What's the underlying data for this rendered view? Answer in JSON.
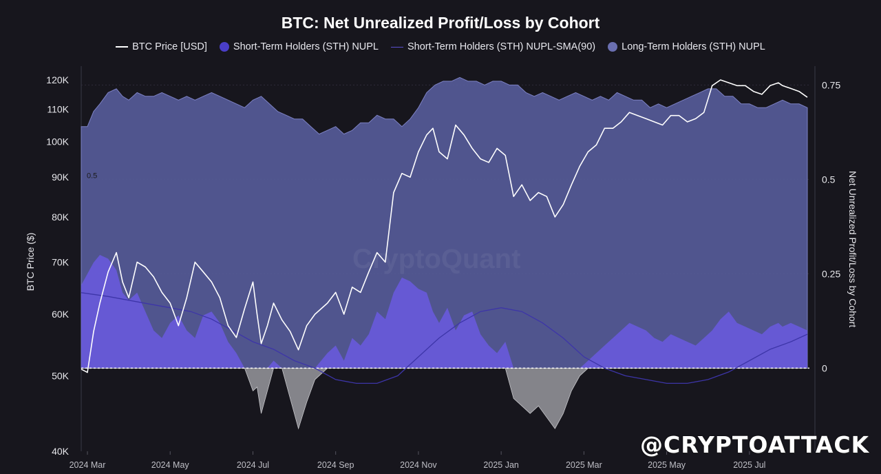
{
  "title": "BTC: Net Unrealized Profit/Loss by Cohort",
  "legend": [
    {
      "label": "BTC Price [USD]",
      "marker": "line",
      "color": "#ffffff"
    },
    {
      "label": "Short-Term Holders (STH) NUPL",
      "marker": "dot",
      "color": "#4a3ec8"
    },
    {
      "label": "Short-Term Holders (STH) NUPL-SMA(90)",
      "marker": "thin-line",
      "color": "#3d35a8"
    },
    {
      "label": "Long-Term Holders (STH) NUPL",
      "marker": "dot",
      "color": "#6a6fb0"
    }
  ],
  "watermark": "@CRYPTOATTACK",
  "logo": "CryptoQuant",
  "chart_data": {
    "type": "line",
    "title": "BTC: Net Unrealized Profit/Loss by Cohort",
    "xlabel": "",
    "ylabel_left": "BTC Price ($)",
    "ylabel_right": "Net Unrealized Profit/Loss by Cohort",
    "ylim_left": [
      40000,
      125000
    ],
    "yscale_left": "log",
    "ylim_right": [
      -0.22,
      0.8
    ],
    "left_ticks": [
      "40K",
      "50K",
      "60K",
      "70K",
      "80K",
      "90K",
      "100K",
      "110K",
      "120K"
    ],
    "left_tick_values": [
      40000,
      50000,
      60000,
      70000,
      80000,
      90000,
      100000,
      110000,
      120000
    ],
    "right_ticks": [
      "0",
      "0.25",
      "0.5",
      "0.75"
    ],
    "right_tick_values": [
      0,
      0.25,
      0.5,
      0.75
    ],
    "inline_annotation": "0.5",
    "x_ticks": [
      "2024 Mar",
      "2024 May",
      "2024 Jul",
      "2024 Sep",
      "2024 Nov",
      "2025 Jan",
      "2025 Mar",
      "2025 May",
      "2025 Jul"
    ],
    "x_tick_months": [
      1,
      3,
      5,
      7,
      9,
      11,
      13,
      15,
      17
    ],
    "x_range_months": [
      0.85,
      18.45
    ],
    "grid": true,
    "legend_position": "top",
    "series": [
      {
        "name": "BTC Price [USD]",
        "axis": "left",
        "color": "#ffffff",
        "x": [
          0.85,
          1.0,
          1.15,
          1.3,
          1.5,
          1.7,
          1.85,
          2.0,
          2.2,
          2.4,
          2.6,
          2.8,
          3.0,
          3.2,
          3.4,
          3.6,
          3.8,
          4.0,
          4.2,
          4.4,
          4.6,
          4.8,
          5.0,
          5.1,
          5.2,
          5.35,
          5.5,
          5.7,
          5.9,
          6.1,
          6.3,
          6.5,
          6.8,
          7.0,
          7.2,
          7.4,
          7.6,
          7.8,
          8.0,
          8.2,
          8.4,
          8.6,
          8.8,
          9.0,
          9.2,
          9.35,
          9.5,
          9.7,
          9.9,
          10.1,
          10.3,
          10.5,
          10.7,
          10.9,
          11.1,
          11.3,
          11.5,
          11.7,
          11.9,
          12.1,
          12.3,
          12.5,
          12.7,
          12.9,
          13.1,
          13.3,
          13.5,
          13.7,
          13.9,
          14.1,
          14.3,
          14.5,
          14.7,
          14.9,
          15.1,
          15.3,
          15.5,
          15.7,
          15.9,
          16.1,
          16.3,
          16.5,
          16.7,
          16.9,
          17.1,
          17.3,
          17.5,
          17.7,
          17.8,
          18.0,
          18.2,
          18.4
        ],
        "values": [
          51000,
          50500,
          57000,
          62000,
          68000,
          72000,
          66000,
          63000,
          70000,
          69000,
          67000,
          64000,
          62000,
          58000,
          63000,
          70000,
          68000,
          66000,
          63000,
          58000,
          56000,
          61000,
          66000,
          60000,
          55000,
          58000,
          62000,
          59000,
          57000,
          54000,
          58000,
          60000,
          62000,
          64000,
          60000,
          65000,
          64000,
          68000,
          72000,
          70000,
          86000,
          91000,
          90000,
          97000,
          102000,
          104000,
          97000,
          95000,
          105000,
          102000,
          98000,
          95000,
          94000,
          98000,
          96000,
          85000,
          88000,
          84000,
          86000,
          85000,
          80000,
          83000,
          88000,
          93000,
          97000,
          99000,
          104000,
          104000,
          106000,
          109000,
          108000,
          107000,
          106000,
          105000,
          108000,
          108000,
          106000,
          107000,
          109000,
          118000,
          120000,
          119000,
          118000,
          118000,
          116000,
          115000,
          118000,
          119000,
          118000,
          117000,
          116000,
          114000
        ],
        "note": "approximate values read off the chart"
      },
      {
        "name": "Short-Term Holders (STH) NUPL",
        "axis": "right",
        "color": "#4a3ec8",
        "x": [
          0.85,
          1.0,
          1.15,
          1.3,
          1.5,
          1.7,
          1.85,
          2.0,
          2.2,
          2.4,
          2.6,
          2.8,
          3.0,
          3.2,
          3.4,
          3.6,
          3.8,
          4.0,
          4.2,
          4.4,
          4.6,
          4.8,
          5.0,
          5.1,
          5.2,
          5.35,
          5.5,
          5.7,
          5.9,
          6.1,
          6.3,
          6.5,
          6.8,
          7.0,
          7.2,
          7.4,
          7.6,
          7.8,
          8.0,
          8.2,
          8.4,
          8.6,
          8.8,
          9.0,
          9.2,
          9.35,
          9.5,
          9.7,
          9.9,
          10.1,
          10.3,
          10.5,
          10.7,
          10.9,
          11.1,
          11.3,
          11.5,
          11.7,
          11.9,
          12.1,
          12.3,
          12.5,
          12.7,
          12.9,
          13.1,
          13.3,
          13.5,
          13.7,
          13.9,
          14.1,
          14.3,
          14.5,
          14.7,
          14.9,
          15.1,
          15.3,
          15.5,
          15.7,
          15.9,
          16.1,
          16.3,
          16.5,
          16.7,
          16.9,
          17.1,
          17.3,
          17.5,
          17.7,
          17.8,
          18.0,
          18.2,
          18.4
        ],
        "values": [
          0.22,
          0.25,
          0.28,
          0.3,
          0.29,
          0.26,
          0.2,
          0.18,
          0.2,
          0.15,
          0.1,
          0.08,
          0.12,
          0.14,
          0.1,
          0.08,
          0.14,
          0.15,
          0.12,
          0.07,
          0.04,
          0.0,
          -0.06,
          -0.05,
          -0.12,
          -0.06,
          0.02,
          0.0,
          -0.08,
          -0.16,
          -0.09,
          -0.03,
          0.04,
          0.06,
          0.02,
          0.08,
          0.06,
          0.09,
          0.15,
          0.13,
          0.2,
          0.24,
          0.23,
          0.21,
          0.2,
          0.15,
          0.12,
          0.16,
          0.1,
          0.14,
          0.15,
          0.09,
          0.06,
          0.04,
          0.07,
          -0.08,
          -0.1,
          -0.12,
          -0.1,
          -0.13,
          -0.16,
          -0.12,
          -0.06,
          -0.02,
          0.02,
          0.04,
          0.06,
          0.08,
          0.1,
          0.12,
          0.11,
          0.1,
          0.08,
          0.07,
          0.09,
          0.08,
          0.07,
          0.06,
          0.08,
          0.1,
          0.13,
          0.15,
          0.12,
          0.11,
          0.1,
          0.09,
          0.11,
          0.12,
          0.11,
          0.12,
          0.11,
          0.1
        ]
      },
      {
        "name": "Short-Term Holders (STH) NUPL-SMA(90)",
        "axis": "right",
        "color": "#3d35a8",
        "x": [
          0.85,
          1.5,
          2.0,
          2.5,
          3.0,
          3.5,
          4.0,
          4.5,
          5.0,
          5.5,
          6.0,
          6.5,
          7.0,
          7.5,
          8.0,
          8.5,
          9.0,
          9.5,
          10.0,
          10.5,
          11.0,
          11.5,
          12.0,
          12.5,
          13.0,
          13.5,
          14.0,
          14.5,
          15.0,
          15.5,
          16.0,
          16.5,
          17.0,
          17.5,
          18.0,
          18.4
        ],
        "values": [
          0.2,
          0.19,
          0.18,
          0.17,
          0.16,
          0.15,
          0.13,
          0.1,
          0.07,
          0.05,
          0.02,
          0.0,
          -0.03,
          -0.04,
          -0.04,
          -0.02,
          0.03,
          0.08,
          0.12,
          0.15,
          0.16,
          0.15,
          0.12,
          0.08,
          0.03,
          0.0,
          -0.02,
          -0.03,
          -0.04,
          -0.04,
          -0.03,
          -0.01,
          0.02,
          0.05,
          0.07,
          0.09
        ]
      },
      {
        "name": "Long-Term Holders (STH) NUPL",
        "axis": "right",
        "color": "#6a6fb0",
        "x": [
          0.85,
          1.0,
          1.15,
          1.3,
          1.5,
          1.7,
          1.85,
          2.0,
          2.2,
          2.4,
          2.6,
          2.8,
          3.0,
          3.2,
          3.4,
          3.6,
          3.8,
          4.0,
          4.2,
          4.4,
          4.6,
          4.8,
          5.0,
          5.2,
          5.4,
          5.6,
          5.8,
          6.0,
          6.2,
          6.4,
          6.6,
          6.8,
          7.0,
          7.2,
          7.4,
          7.6,
          7.8,
          8.0,
          8.2,
          8.4,
          8.6,
          8.8,
          9.0,
          9.2,
          9.4,
          9.6,
          9.8,
          10.0,
          10.2,
          10.4,
          10.6,
          10.8,
          11.0,
          11.2,
          11.4,
          11.6,
          11.8,
          12.0,
          12.2,
          12.4,
          12.6,
          12.8,
          13.0,
          13.2,
          13.4,
          13.6,
          13.8,
          14.0,
          14.2,
          14.4,
          14.6,
          14.8,
          15.0,
          15.2,
          15.4,
          15.6,
          15.8,
          16.0,
          16.2,
          16.4,
          16.6,
          16.8,
          17.0,
          17.2,
          17.4,
          17.6,
          17.8,
          18.0,
          18.2,
          18.4
        ],
        "values": [
          0.64,
          0.64,
          0.68,
          0.7,
          0.73,
          0.74,
          0.72,
          0.71,
          0.73,
          0.72,
          0.72,
          0.73,
          0.72,
          0.71,
          0.72,
          0.71,
          0.72,
          0.73,
          0.72,
          0.71,
          0.7,
          0.69,
          0.71,
          0.72,
          0.7,
          0.68,
          0.67,
          0.66,
          0.66,
          0.64,
          0.62,
          0.63,
          0.64,
          0.62,
          0.63,
          0.65,
          0.65,
          0.67,
          0.66,
          0.66,
          0.64,
          0.66,
          0.69,
          0.73,
          0.75,
          0.76,
          0.76,
          0.77,
          0.76,
          0.76,
          0.75,
          0.76,
          0.76,
          0.75,
          0.75,
          0.73,
          0.72,
          0.73,
          0.72,
          0.71,
          0.72,
          0.73,
          0.72,
          0.71,
          0.72,
          0.71,
          0.73,
          0.72,
          0.71,
          0.71,
          0.69,
          0.7,
          0.69,
          0.7,
          0.71,
          0.72,
          0.73,
          0.74,
          0.74,
          0.72,
          0.72,
          0.7,
          0.7,
          0.69,
          0.69,
          0.7,
          0.71,
          0.7,
          0.7,
          0.69
        ]
      }
    ]
  }
}
